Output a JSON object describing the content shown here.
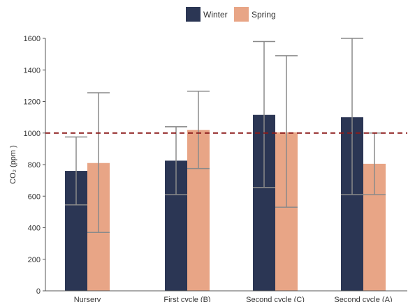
{
  "chart_data": {
    "type": "bar",
    "categories": [
      "Nursery",
      "First cycle (B)",
      "Second cycle (C)",
      "Second cycle (A)"
    ],
    "series": [
      {
        "name": "Winter",
        "color": "#2b3654",
        "values": [
          760,
          825,
          1115,
          1100
        ],
        "error_low": [
          545,
          610,
          655,
          610
        ],
        "error_high": [
          975,
          1040,
          1580,
          1600
        ]
      },
      {
        "name": "Spring",
        "color": "#e8a586",
        "values": [
          810,
          1020,
          1005,
          805
        ],
        "error_low": [
          370,
          775,
          530,
          610
        ],
        "error_high": [
          1255,
          1265,
          1490,
          1000
        ]
      }
    ],
    "ylabel": "CO₂ (ppm )",
    "ylim": [
      0,
      1600
    ],
    "yticks": [
      0,
      200,
      400,
      600,
      800,
      1000,
      1200,
      1400,
      1600
    ],
    "reference_line": {
      "value": 1000,
      "color": "#8b1a1a",
      "style": "dashed"
    },
    "grid": false,
    "legend_position": "top-center",
    "error_bar_color": "#8a8a8a"
  }
}
